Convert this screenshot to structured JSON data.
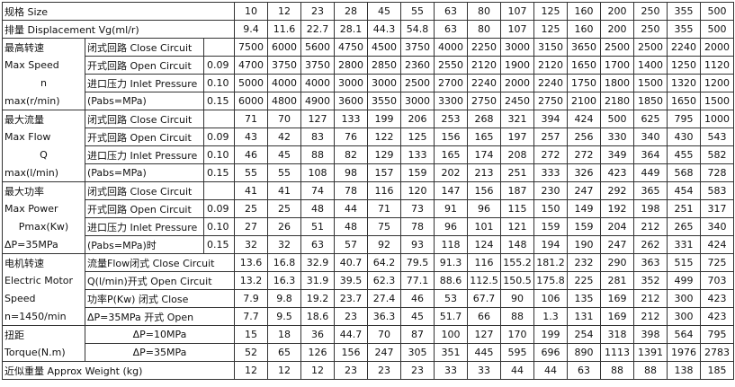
{
  "table": {
    "size": {
      "label": "规格 Size",
      "values": [
        10,
        12,
        23,
        28,
        45,
        55,
        63,
        80,
        107,
        125,
        160,
        200,
        250,
        355,
        500
      ]
    },
    "displacement": {
      "label": "排量 Displacement Vg(ml/r)",
      "values": [
        9.4,
        11.6,
        22.7,
        28.1,
        44.3,
        54.8,
        63,
        80,
        107,
        125,
        160,
        200,
        250,
        355,
        500
      ]
    },
    "groups": [
      {
        "labels": [
          "最高转速",
          "Max Speed",
          "n",
          "max(r/min)"
        ],
        "rows": [
          {
            "label": "闭式回路 Close Circuit",
            "values": [
              7500,
              6000,
              5600,
              4750,
              4500,
              3750,
              4000,
              2250,
              3000,
              3150,
              3650,
              2500,
              2500,
              2240,
              2000
            ]
          },
          {
            "label": "开式回路 Open Circuit",
            "pressure": "0.09",
            "values": [
              4700,
              3750,
              3750,
              2800,
              2850,
              2360,
              2550,
              2120,
              1900,
              2120,
              1650,
              1700,
              1400,
              1250,
              1120
            ]
          },
          {
            "label": "进口压力 Inlet Pressure",
            "pressure": "0.10",
            "values": [
              5000,
              4000,
              4000,
              3000,
              3000,
              2500,
              2700,
              2240,
              2000,
              2240,
              1750,
              1800,
              1500,
              1320,
              1200
            ]
          },
          {
            "label": "(Pabs=MPa)",
            "pressure": "0.15",
            "values": [
              6000,
              4800,
              4900,
              3600,
              3550,
              3000,
              3300,
              2750,
              2450,
              2750,
              2100,
              2180,
              1850,
              1650,
              1500
            ]
          }
        ]
      },
      {
        "labels": [
          "最大流量",
          "Max Flow",
          "Q",
          "max(l/min)"
        ],
        "rows": [
          {
            "label": "闭式回路 Close Circuit",
            "values": [
              71,
              70,
              127,
              133,
              199,
              206,
              253,
              268,
              321,
              394,
              424,
              500,
              625,
              795,
              1000
            ]
          },
          {
            "label": "开式回路 Open Circuit",
            "pressure": "0.09",
            "values": [
              43,
              42,
              83,
              76,
              122,
              125,
              156,
              165,
              197,
              257,
              256,
              330,
              340,
              430,
              543
            ]
          },
          {
            "label": "进口压力 Inlet Pressure",
            "pressure": "0.10",
            "values": [
              46,
              45,
              88,
              82,
              129,
              133,
              165,
              174,
              208,
              272,
              272,
              349,
              364,
              455,
              582
            ]
          },
          {
            "label": "(Pabs=MPa)",
            "pressure": "0.15",
            "values": [
              55,
              55,
              108,
              98,
              157,
              159,
              202,
              213,
              251,
              333,
              326,
              423,
              449,
              568,
              728
            ]
          }
        ]
      },
      {
        "labels": [
          "最大功率",
          "Max Power",
          "Pmax(Kw)",
          "ΔP=35MPa"
        ],
        "rows": [
          {
            "label": "闭式回路 Close Circuit",
            "values": [
              41,
              41,
              74,
              78,
              116,
              120,
              147,
              156,
              187,
              230,
              247,
              292,
              365,
              454,
              583
            ]
          },
          {
            "label": "开式回路 Open Circuit",
            "pressure": "0.09",
            "values": [
              25,
              25,
              48,
              44,
              71,
              73,
              91,
              96,
              115,
              150,
              149,
              192,
              198,
              251,
              317
            ]
          },
          {
            "label": "进口压力 Inlet Pressure",
            "pressure": "0.10",
            "values": [
              27,
              26,
              51,
              48,
              75,
              78,
              96,
              101,
              121,
              159,
              159,
              204,
              212,
              265,
              340
            ]
          },
          {
            "label": "(Pabs=MPa)时",
            "pressure": "0.15",
            "values": [
              32,
              32,
              63,
              57,
              92,
              93,
              118,
              124,
              148,
              194,
              190,
              247,
              262,
              331,
              424
            ]
          }
        ]
      },
      {
        "labels": [
          "电机转速",
          "Electric Motor",
          "Speed",
          "n=1450/min"
        ],
        "rows": [
          {
            "label": "流量Flow闭式 Close Circuit",
            "values": [
              13.6,
              16.8,
              32.9,
              40.7,
              64.2,
              79.5,
              91.3,
              116,
              155.2,
              181.2,
              232,
              290,
              363,
              515,
              725
            ]
          },
          {
            "label": "Q(l/min)开式 Open Circuit",
            "values": [
              13.2,
              16.3,
              31.9,
              39.5,
              62.3,
              77.1,
              88.6,
              112.5,
              150.5,
              175.8,
              225,
              281,
              352,
              499,
              703
            ]
          },
          {
            "label": "功率P(Kw)  闭式 Close",
            "values": [
              7.9,
              9.8,
              19.2,
              23.7,
              27.4,
              46,
              53,
              67.7,
              90,
              106,
              135,
              169,
              212,
              300,
              423
            ]
          },
          {
            "label": "ΔP=35MPa  开式 Open",
            "values": [
              7.7,
              9.5,
              18.6,
              23,
              36.3,
              45,
              51.7,
              66,
              88,
              1.3,
              131,
              169,
              212,
              300,
              423
            ]
          }
        ]
      },
      {
        "labels": [
          "扭距",
          "Torque(N.m)"
        ],
        "rows": [
          {
            "label": "ΔP=10MPa",
            "values": [
              15,
              18,
              36,
              44.7,
              70,
              87,
              100,
              127,
              170,
              199,
              254,
              318,
              398,
              564,
              795
            ]
          },
          {
            "label": "ΔP=35MPa",
            "values": [
              52,
              65,
              126,
              156,
              247,
              305,
              351,
              445,
              595,
              696,
              890,
              1113,
              1391,
              1976,
              2783
            ]
          }
        ]
      }
    ],
    "weight": {
      "label": "近似重量  Approx Weight  (kg)",
      "values": [
        12,
        12,
        12,
        23,
        23,
        23,
        33,
        33,
        44,
        44,
        63,
        88,
        88,
        138,
        185
      ]
    }
  }
}
